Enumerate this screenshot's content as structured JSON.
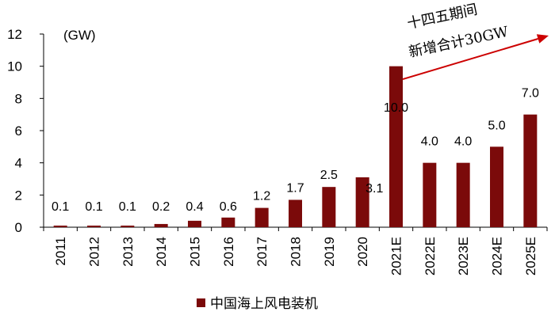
{
  "chart_data": {
    "type": "bar",
    "unit_label": "(GW)",
    "categories": [
      "2011",
      "2012",
      "2013",
      "2014",
      "2015",
      "2016",
      "2017",
      "2018",
      "2019",
      "2020",
      "2021E",
      "2022E",
      "2023E",
      "2024E",
      "2025E"
    ],
    "series": [
      {
        "name": "中国海上风电装机",
        "color": "#7B0A0A",
        "values": [
          0.1,
          0.1,
          0.1,
          0.2,
          0.4,
          0.6,
          1.2,
          1.7,
          2.5,
          3.1,
          10.0,
          4.0,
          4.0,
          5.0,
          7.0
        ],
        "labels": [
          "0.1",
          "0.1",
          "0.1",
          "0.2",
          "0.4",
          "0.6",
          "1.2",
          "1.7",
          "2.5",
          "3.1",
          "10.0",
          "4.0",
          "4.0",
          "5.0",
          "7.0"
        ]
      }
    ],
    "ylim": [
      0,
      12
    ],
    "yticks": [
      "0",
      "2",
      "4",
      "6",
      "8",
      "10",
      "12"
    ],
    "grid": false,
    "legend_position": "bottom",
    "annotation": {
      "lines": [
        "十四五期间",
        "新增合计30GW"
      ],
      "arrow_color": "#CC0000"
    }
  }
}
